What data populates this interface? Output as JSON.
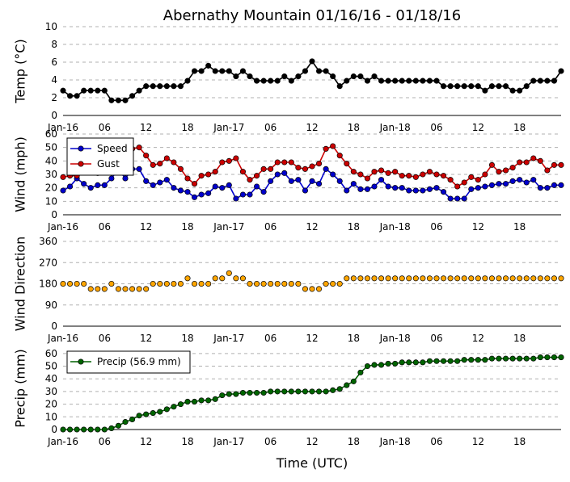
{
  "chart_data": {
    "title": "Abernathy Mountain 01/16/16 - 01/18/16",
    "xlabel": "Time (UTC)",
    "x_unit": "hours since 2016-01-16 00:00 UTC",
    "x_range": [
      0,
      72
    ],
    "x_ticks": [
      {
        "x": 0,
        "label": "Jan-16"
      },
      {
        "x": 6,
        "label": "06"
      },
      {
        "x": 12,
        "label": "12"
      },
      {
        "x": 18,
        "label": "18"
      },
      {
        "x": 24,
        "label": "Jan-17"
      },
      {
        "x": 30,
        "label": "06"
      },
      {
        "x": 36,
        "label": "12"
      },
      {
        "x": 42,
        "label": "18"
      },
      {
        "x": 48,
        "label": "Jan-18"
      },
      {
        "x": 54,
        "label": "06"
      },
      {
        "x": 60,
        "label": "12"
      },
      {
        "x": 66,
        "label": "18"
      }
    ],
    "x": [
      0,
      1,
      2,
      3,
      4,
      5,
      6,
      7,
      8,
      9,
      10,
      11,
      12,
      13,
      14,
      15,
      16,
      17,
      18,
      19,
      20,
      21,
      22,
      23,
      24,
      25,
      26,
      27,
      28,
      29,
      30,
      31,
      32,
      33,
      34,
      35,
      36,
      37,
      38,
      39,
      40,
      41,
      42,
      43,
      44,
      45,
      46,
      47,
      48,
      49,
      50,
      51,
      52,
      53,
      54,
      55,
      56,
      57,
      58,
      59,
      60,
      61,
      62,
      63,
      64,
      65,
      66,
      67,
      68,
      69,
      70,
      71,
      72
    ],
    "panels": [
      {
        "type": "line",
        "ylabel": "Temp (°C)",
        "ylim": [
          0,
          10
        ],
        "yticks": [
          0,
          2,
          4,
          6,
          8,
          10
        ],
        "grid": true,
        "legend": null,
        "series": [
          {
            "color": "#000000",
            "values": [
              2.8,
              2.2,
              2.2,
              2.8,
              2.8,
              2.8,
              2.8,
              1.7,
              1.7,
              1.7,
              2.2,
              2.8,
              3.3,
              3.3,
              3.3,
              3.3,
              3.3,
              3.3,
              3.9,
              5,
              5,
              5.6,
              5,
              5,
              5,
              4.4,
              5,
              4.4,
              3.9,
              3.9,
              3.9,
              3.9,
              4.4,
              3.9,
              4.4,
              5,
              6.1,
              5,
              5,
              4.4,
              3.3,
              3.9,
              4.4,
              4.4,
              3.9,
              4.4,
              3.9,
              3.9,
              3.9,
              3.9,
              3.9,
              3.9,
              3.9,
              3.9,
              3.9,
              3.3,
              3.3,
              3.3,
              3.3,
              3.3,
              3.3,
              2.8,
              3.3,
              3.3,
              3.3,
              2.8,
              2.8,
              3.3,
              3.9,
              3.9,
              3.9,
              3.9,
              5
            ]
          }
        ]
      },
      {
        "type": "line",
        "ylabel": "Wind (mph)",
        "ylim": [
          0,
          60
        ],
        "yticks": [
          0,
          10,
          20,
          30,
          40,
          50,
          60
        ],
        "grid": true,
        "legend": "upper-left",
        "series": [
          {
            "name": "Speed",
            "color": "#0000cc",
            "values": [
              18,
              21,
              27,
              23,
              20,
              22,
              22,
              27,
              34,
              27,
              34,
              34,
              25,
              22,
              24,
              26,
              20,
              18,
              17,
              13,
              15,
              16,
              21,
              20,
              22,
              12,
              15,
              15,
              21,
              17,
              25,
              30,
              31,
              25,
              26,
              18,
              25,
              23,
              34,
              30,
              25,
              18,
              23,
              19,
              19,
              21,
              26,
              21,
              20,
              20,
              18,
              18,
              18,
              19,
              20,
              17,
              12,
              12,
              12,
              19,
              20,
              21,
              22,
              23,
              23,
              25,
              26,
              24,
              26,
              20,
              20,
              22,
              22
            ]
          },
          {
            "name": "Gust",
            "color": "#cc0000",
            "values": [
              28,
              29,
              29,
              32,
              33,
              31,
              33,
              34,
              35,
              36,
              49,
              50,
              44,
              37,
              38,
              42,
              39,
              34,
              27,
              23,
              29,
              30,
              32,
              39,
              40,
              42,
              32,
              26,
              29,
              34,
              34,
              39,
              39,
              39,
              35,
              34,
              36,
              38,
              49,
              51,
              44,
              38,
              32,
              30,
              27,
              32,
              33,
              31,
              32,
              29,
              29,
              28,
              30,
              32,
              30,
              29,
              26,
              21,
              24,
              28,
              26,
              30,
              37,
              32,
              33,
              35,
              39,
              39,
              42,
              40,
              33,
              37,
              37
            ]
          }
        ]
      },
      {
        "type": "scatter",
        "ylabel": "Wind Direction",
        "ylim": [
          0,
          360
        ],
        "yticks": [
          0,
          90,
          180,
          270,
          360
        ],
        "grid": true,
        "legend": null,
        "series": [
          {
            "color": "#ffa500",
            "values": [
              180,
              180,
              180,
              180,
              158,
              158,
              158,
              180,
              158,
              158,
              158,
              158,
              158,
              180,
              180,
              180,
              180,
              180,
              203,
              180,
              180,
              180,
              203,
              203,
              225,
              203,
              203,
              180,
              180,
              180,
              180,
              180,
              180,
              180,
              180,
              158,
              158,
              158,
              180,
              180,
              180,
              203,
              203,
              203,
              203,
              203,
              203,
              203,
              203,
              203,
              203,
              203,
              203,
              203,
              203,
              203,
              203,
              203,
              203,
              203,
              203,
              203,
              203,
              203,
              203,
              203,
              203,
              203,
              203,
              203,
              203,
              203,
              203
            ]
          }
        ]
      },
      {
        "type": "line",
        "ylabel": "Precip (mm)",
        "ylim": [
          0,
          65
        ],
        "yticks": [
          0,
          10,
          20,
          30,
          40,
          50,
          60
        ],
        "grid": true,
        "legend": "upper-left",
        "series": [
          {
            "name": "Precip (56.9 mm)",
            "color": "#006400",
            "values": [
              0,
              0,
              0,
              0,
              0,
              0,
              0,
              1,
              3,
              6,
              8,
              11,
              12,
              13,
              14,
              16,
              18,
              20,
              22,
              22,
              23,
              23,
              24,
              27,
              28,
              28,
              29,
              29,
              29,
              29,
              30,
              30,
              30,
              30,
              30,
              30,
              30,
              30,
              30,
              31,
              32,
              35,
              38,
              45,
              50,
              51,
              51,
              52,
              52,
              53,
              53,
              53,
              53,
              54,
              54,
              54,
              54,
              54,
              55,
              55,
              55,
              55,
              56,
              56,
              56,
              56,
              56,
              56,
              56,
              57,
              57,
              57,
              57
            ]
          }
        ]
      }
    ]
  }
}
